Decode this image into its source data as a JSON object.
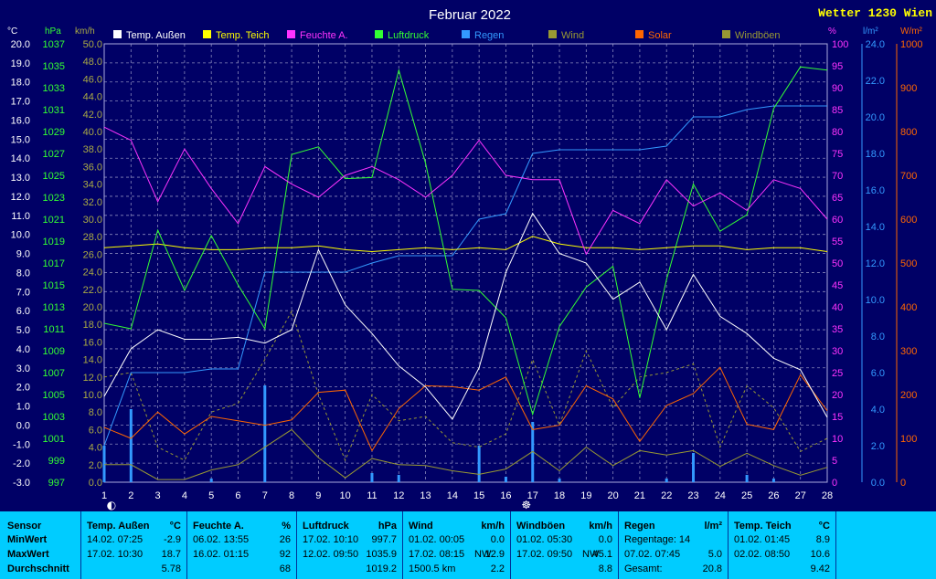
{
  "chart_data": {
    "type": "line",
    "title": "Februar 2022",
    "station": "Wetter 1230 Wien",
    "x": [
      1,
      2,
      3,
      4,
      5,
      6,
      7,
      8,
      9,
      10,
      11,
      12,
      13,
      14,
      15,
      16,
      17,
      18,
      19,
      20,
      21,
      22,
      23,
      24,
      25,
      26,
      27,
      28
    ],
    "axes": {
      "temp": {
        "unit": "°C",
        "range": [
          -3.0,
          20.0
        ],
        "step": 1.0
      },
      "hpa": {
        "unit": "hPa",
        "range": [
          997,
          1037
        ],
        "step": 2
      },
      "kmh": {
        "unit": "km/h",
        "range": [
          0.0,
          50.0
        ],
        "step": 2.0
      },
      "pct": {
        "unit": "%",
        "range": [
          0,
          100
        ],
        "step": 5
      },
      "rain": {
        "unit": "l/m²",
        "range": [
          0.0,
          24.0
        ],
        "step": 2.0
      },
      "solar": {
        "unit": "W/m²",
        "range": [
          0,
          1000
        ],
        "step": 100
      }
    },
    "series": [
      {
        "name": "Temp. Außen",
        "axis": "temp",
        "color": "#ffffff",
        "values": [
          1.5,
          4.0,
          5.0,
          4.5,
          4.5,
          4.6,
          4.3,
          5.0,
          9.2,
          6.3,
          4.8,
          3.1,
          2.0,
          0.3,
          3.0,
          8.0,
          11.1,
          9.0,
          8.5,
          6.6,
          7.5,
          5.0,
          7.9,
          5.7,
          4.8,
          3.5,
          2.9,
          0.4
        ]
      },
      {
        "name": "Temp. Teich",
        "axis": "temp",
        "color": "#ffff00",
        "values": [
          9.3,
          9.4,
          9.5,
          9.3,
          9.2,
          9.2,
          9.3,
          9.3,
          9.4,
          9.2,
          9.1,
          9.2,
          9.3,
          9.2,
          9.3,
          9.2,
          9.9,
          9.5,
          9.3,
          9.3,
          9.2,
          9.3,
          9.4,
          9.4,
          9.2,
          9.3,
          9.3,
          9.1
        ]
      },
      {
        "name": "Feuchte A.",
        "axis": "pct",
        "color": "#ff33ff",
        "values": [
          81,
          78,
          64,
          76,
          67,
          59,
          72,
          68,
          65,
          70,
          72,
          69,
          65,
          70,
          78,
          70,
          69,
          69,
          52,
          62,
          59,
          69,
          63,
          66,
          62,
          69,
          67,
          60
        ]
      },
      {
        "name": "Luftdruck",
        "axis": "hpa",
        "color": "#33ff33",
        "values": [
          1011.5,
          1011,
          1020,
          1014.5,
          1019.5,
          1015,
          1011,
          1026.9,
          1027.6,
          1024.7,
          1024.8,
          1034.6,
          1026.1,
          1014.6,
          1014.5,
          1012.0,
          1003.2,
          1011.2,
          1014.8,
          1016.7,
          1004.7,
          1015.5,
          1024.2,
          1019.9,
          1021.4,
          1031.1,
          1034.9,
          1034.6
        ]
      },
      {
        "name": "Regen",
        "axis": "rain",
        "color": "#3399ff",
        "values": [
          2.0,
          6.0,
          6.0,
          6.0,
          6.2,
          6.2,
          11.5,
          11.5,
          11.5,
          11.5,
          12.0,
          12.4,
          12.4,
          12.4,
          14.4,
          14.7,
          18.0,
          18.2,
          18.2,
          18.2,
          18.2,
          18.4,
          20.0,
          20.0,
          20.4,
          20.6,
          20.6,
          20.6
        ]
      },
      {
        "name": "Wind",
        "axis": "kmh",
        "color": "#999933",
        "values": [
          2.0,
          2.0,
          0.3,
          0.3,
          1.4,
          2.0,
          4.0,
          6.0,
          2.8,
          0.5,
          2.7,
          2.0,
          1.9,
          1.3,
          0.9,
          1.5,
          3.5,
          1.3,
          4.0,
          1.9,
          3.6,
          3.1,
          3.6,
          1.8,
          3.3,
          1.9,
          0.8,
          1.7
        ]
      },
      {
        "name": "Solar",
        "axis": "solar",
        "color": "#ff6600",
        "values": [
          125,
          100,
          160,
          110,
          150,
          140,
          130,
          142,
          205,
          210,
          72,
          168,
          220,
          218,
          210,
          240,
          120,
          130,
          220,
          190,
          93,
          175,
          202,
          262,
          132,
          120,
          245,
          163
        ]
      },
      {
        "name": "Windböen",
        "axis": "kmh",
        "color": "#999933",
        "dashed": true,
        "values": [
          12.0,
          12.5,
          4.0,
          2.5,
          8.0,
          9.0,
          14.0,
          19.5,
          10.0,
          2.5,
          10.0,
          7.0,
          7.5,
          4.5,
          4.0,
          5.5,
          14.0,
          6.5,
          15.0,
          8.5,
          12.0,
          12.5,
          13.5,
          4.0,
          11.0,
          8.5,
          3.5,
          5.0
        ]
      }
    ],
    "rain_daily": {
      "values": [
        2.0,
        4.0,
        0,
        0,
        0.2,
        0,
        5.3,
        0,
        0,
        0,
        0.5,
        0.4,
        0,
        0,
        2.0,
        0.3,
        3.3,
        0.2,
        0,
        0,
        0,
        0.2,
        1.6,
        0,
        0.4,
        0.2,
        0,
        0
      ]
    },
    "markers": {
      "moon_day_1": "◐",
      "moon_day_17": "☸"
    }
  },
  "footer": {
    "sensor": {
      "header": "Sensor",
      "min": "MinWert",
      "max": "MaxWert",
      "avg": "Durchschnitt"
    },
    "temp_aussen": {
      "header": "Temp. Außen",
      "unit": "°C",
      "min_date": "14.02.  07:25",
      "min_val": "-2.9",
      "max_date": "17.02.  10:30",
      "max_val": "18.7",
      "avg": "5.78"
    },
    "feuchte": {
      "header": "Feuchte A.",
      "unit": "%",
      "min_date": "06.02.  13:55",
      "min_val": "26",
      "max_date": "16.02.  01:15",
      "max_val": "92",
      "avg": "68"
    },
    "luftdruck": {
      "header": "Luftdruck",
      "unit": "hPa",
      "min_date": "17.02.  10:10",
      "min_val": "997.7",
      "max_date": "12.02.  09:50",
      "max_val": "1035.9",
      "avg": "1019.2"
    },
    "wind": {
      "header": "Wind",
      "unit": "km/h",
      "min_date": "01.02.  00:05",
      "min_val": "0.0",
      "max_date": "17.02.  08:15",
      "max_dir": "NW",
      "max_val": "12.9",
      "extra": "1500.5 km",
      "avg": "2.2"
    },
    "windboeen": {
      "header": "Windböen",
      "unit": "km/h",
      "min_date": "01.02.  05:30",
      "min_val": "0.0",
      "max_date": "17.02.  09:50",
      "max_dir": "NW",
      "max_val": "45.1",
      "avg": "8.8"
    },
    "regen": {
      "header": "Regen",
      "unit": "l/m²",
      "line1": "Regentage: 14",
      "max_date": "07.02.  07:45",
      "max_val": "5.0",
      "line3": "Gesamt:",
      "total": "20.8"
    },
    "temp_teich": {
      "header": "Temp. Teich",
      "unit": "°C",
      "min_date": "01.02.  01:45",
      "min_val": "8.9",
      "max_date": "02.02.  08:50",
      "max_val": "10.6",
      "avg": "9.42"
    }
  }
}
